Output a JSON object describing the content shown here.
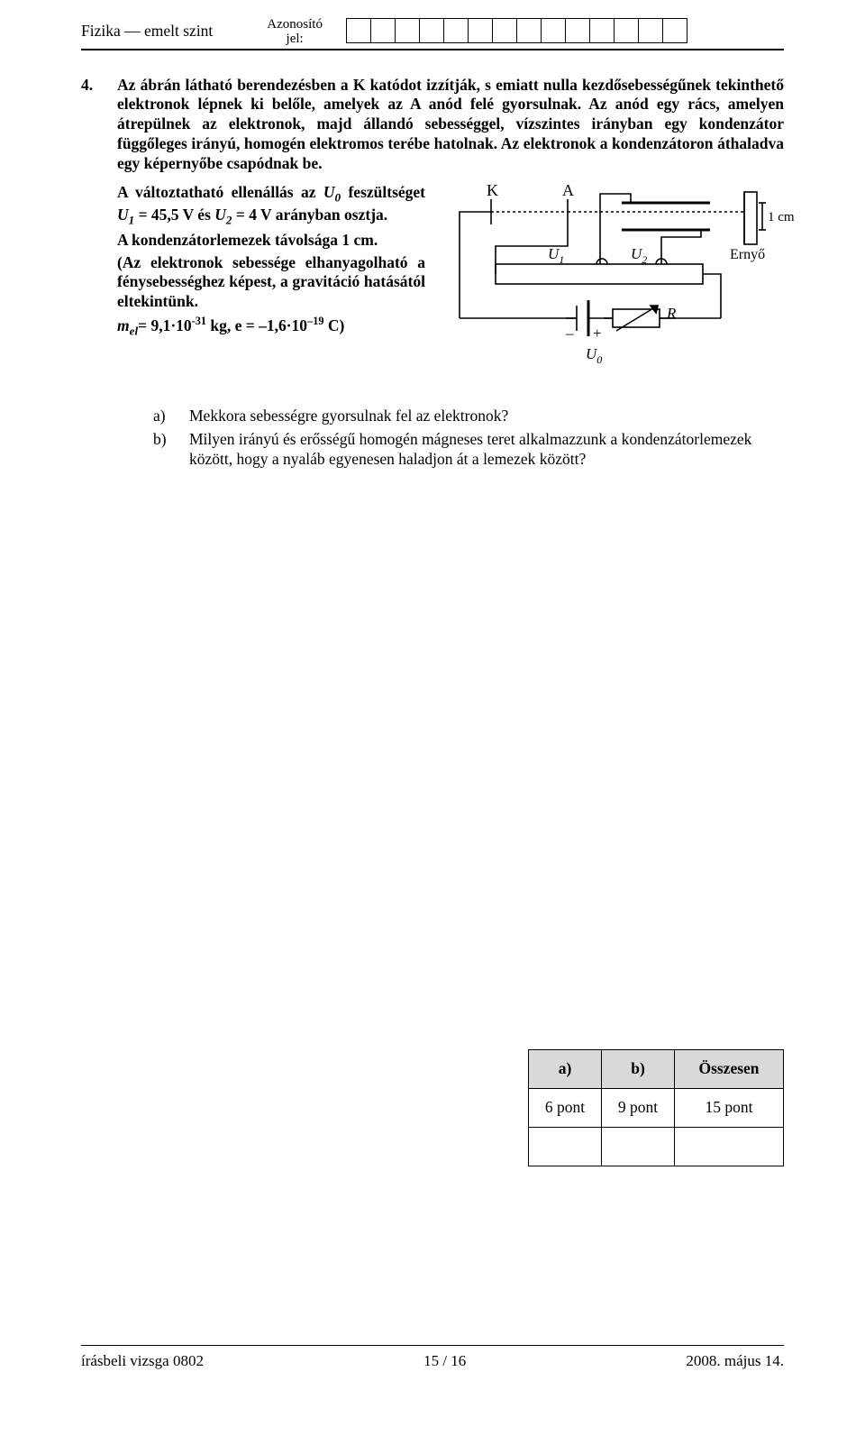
{
  "header": {
    "subject": "Fizika — emelt szint",
    "id_label_top": "Azonosító",
    "id_label_bot": "jel:",
    "id_cells": 14
  },
  "question": {
    "number": "4.",
    "p1": "Az ábrán látható berendezésben a K katódot izzítják, s emiatt nulla kezdősebességűnek tekinthető elektronok lépnek ki belőle, amelyek az A anód felé gyorsulnak. Az anód egy rács, amelyen átrepülnek az elektronok, majd állandó sebességgel, vízszintes irányban egy kondenzátor függőleges irányú, homogén elektromos terébe hatolnak. Az elektronok a kondenzátoron áthaladva egy képernyőbe csapódnak be.",
    "p2_a": "A változtatható ellenállás az ",
    "p2_b": " feszültséget ",
    "p2_c": " = 45,5 V és ",
    "p2_d": " = 4 V arányban osztja.",
    "p3": "A kondenzátorlemezek távolsága 1 cm.",
    "p4": "(Az elektronok sebessége elhanyagolható a fénysebességhez képest, a gravitáció hatásától eltekintünk.",
    "p5_a": "m",
    "p5_b": "= 9,1·10",
    "p5_c": " kg,  e = –1,6·10",
    "p5_d": " C)",
    "exp1": "-31",
    "exp2": "–19",
    "a": "Mekkora sebességre gyorsulnak fel az elektronok?",
    "b": "Milyen irányú és erősségű homogén mágneses teret alkalmazzunk a kondenzátorlemezek között, hogy a nyaláb egyenesen haladjon át a lemezek között?",
    "a_lab": "a)",
    "b_lab": "b)"
  },
  "fig": {
    "K": "K",
    "A": "A",
    "U1": "U",
    "U2": "U",
    "U0": "U",
    "R": "R",
    "one": "1",
    "two": "2",
    "zero": "0",
    "screen": "Ernyő",
    "dist": "1 cm",
    "minus": "–",
    "plus": "+",
    "colors": {
      "stroke": "#000000",
      "bg": "#ffffff"
    }
  },
  "score": {
    "h_a": "a)",
    "h_b": "b)",
    "h_tot": "Összesen",
    "v_a": "6 pont",
    "v_b": "9 pont",
    "v_tot": "15 pont"
  },
  "footer": {
    "left": "írásbeli vizsga 0802",
    "mid": "15 / 16",
    "right": "2008. május 14."
  }
}
